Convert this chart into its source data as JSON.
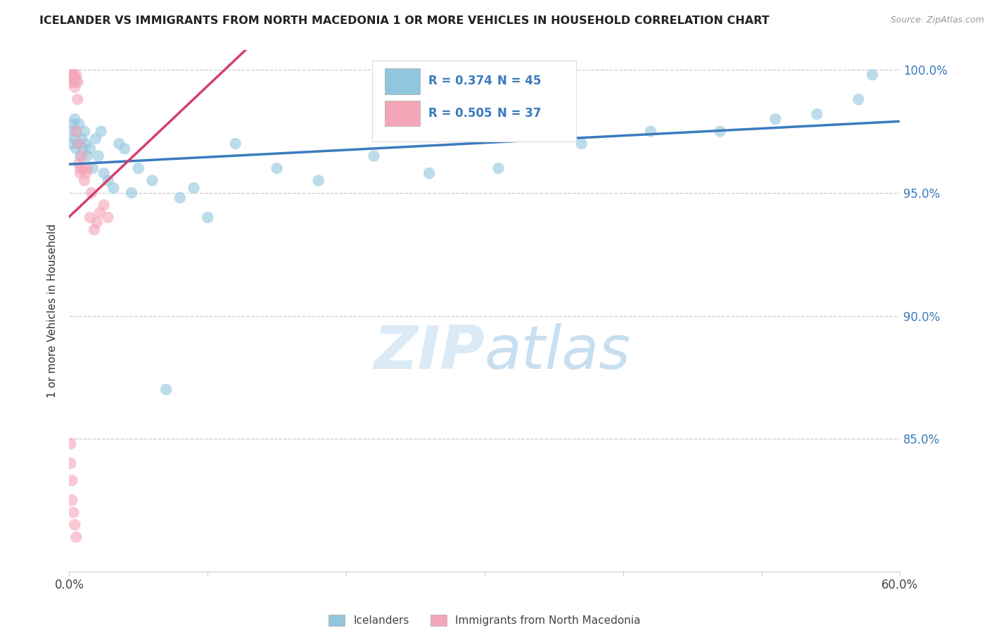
{
  "title": "ICELANDER VS IMMIGRANTS FROM NORTH MACEDONIA 1 OR MORE VEHICLES IN HOUSEHOLD CORRELATION CHART",
  "source": "Source: ZipAtlas.com",
  "xlabel_blue": "Icelanders",
  "xlabel_pink": "Immigrants from North Macedonia",
  "ylabel": "1 or more Vehicles in Household",
  "xmin": 0.0,
  "xmax": 0.6,
  "ymin": 0.796,
  "ymax": 1.008,
  "ytick_positions": [
    1.0,
    0.95,
    0.9,
    0.85
  ],
  "ytick_labels": [
    "100.0%",
    "95.0%",
    "90.0%",
    "85.0%"
  ],
  "R_blue": 0.374,
  "N_blue": 45,
  "R_pink": 0.505,
  "N_pink": 37,
  "blue_color": "#92c5de",
  "pink_color": "#f4a6b8",
  "blue_line_color": "#3a7bbf",
  "pink_line_color": "#d44070",
  "watermark_color": "#daeaf7",
  "blue_x": [
    0.001,
    0.002,
    0.003,
    0.004,
    0.004,
    0.005,
    0.005,
    0.006,
    0.007,
    0.008,
    0.009,
    0.01,
    0.011,
    0.012,
    0.013,
    0.015,
    0.017,
    0.019,
    0.021,
    0.023,
    0.025,
    0.028,
    0.032,
    0.036,
    0.04,
    0.045,
    0.05,
    0.06,
    0.07,
    0.08,
    0.09,
    0.1,
    0.12,
    0.15,
    0.18,
    0.22,
    0.26,
    0.31,
    0.37,
    0.42,
    0.47,
    0.51,
    0.54,
    0.57,
    0.58
  ],
  "blue_y": [
    0.97,
    0.975,
    0.978,
    0.972,
    0.98,
    0.968,
    0.975,
    0.97,
    0.978,
    0.965,
    0.972,
    0.968,
    0.975,
    0.97,
    0.965,
    0.968,
    0.96,
    0.972,
    0.965,
    0.975,
    0.958,
    0.955,
    0.952,
    0.97,
    0.968,
    0.95,
    0.96,
    0.955,
    0.87,
    0.948,
    0.952,
    0.94,
    0.97,
    0.96,
    0.955,
    0.965,
    0.958,
    0.96,
    0.97,
    0.975,
    0.975,
    0.98,
    0.982,
    0.988,
    0.998
  ],
  "pink_x": [
    0.001,
    0.001,
    0.001,
    0.002,
    0.002,
    0.003,
    0.003,
    0.004,
    0.004,
    0.005,
    0.005,
    0.005,
    0.006,
    0.006,
    0.007,
    0.007,
    0.008,
    0.008,
    0.009,
    0.01,
    0.011,
    0.012,
    0.013,
    0.015,
    0.016,
    0.018,
    0.02,
    0.022,
    0.025,
    0.028,
    0.001,
    0.001,
    0.002,
    0.002,
    0.003,
    0.004,
    0.005
  ],
  "pink_y": [
    0.998,
    0.997,
    0.995,
    0.998,
    0.996,
    0.998,
    0.995,
    0.997,
    0.993,
    0.996,
    0.975,
    0.998,
    0.995,
    0.988,
    0.97,
    0.962,
    0.958,
    0.96,
    0.965,
    0.96,
    0.955,
    0.958,
    0.96,
    0.94,
    0.95,
    0.935,
    0.938,
    0.942,
    0.945,
    0.94,
    0.848,
    0.84,
    0.833,
    0.825,
    0.82,
    0.815,
    0.81
  ],
  "blue_trendline": [
    0.9615,
    0.98
  ],
  "pink_trendline": [
    0.935,
    0.998
  ],
  "legend_R_blue_text": "R = 0.374",
  "legend_N_blue_text": "N = 45",
  "legend_R_pink_text": "R = 0.505",
  "legend_N_pink_text": "N = 37"
}
